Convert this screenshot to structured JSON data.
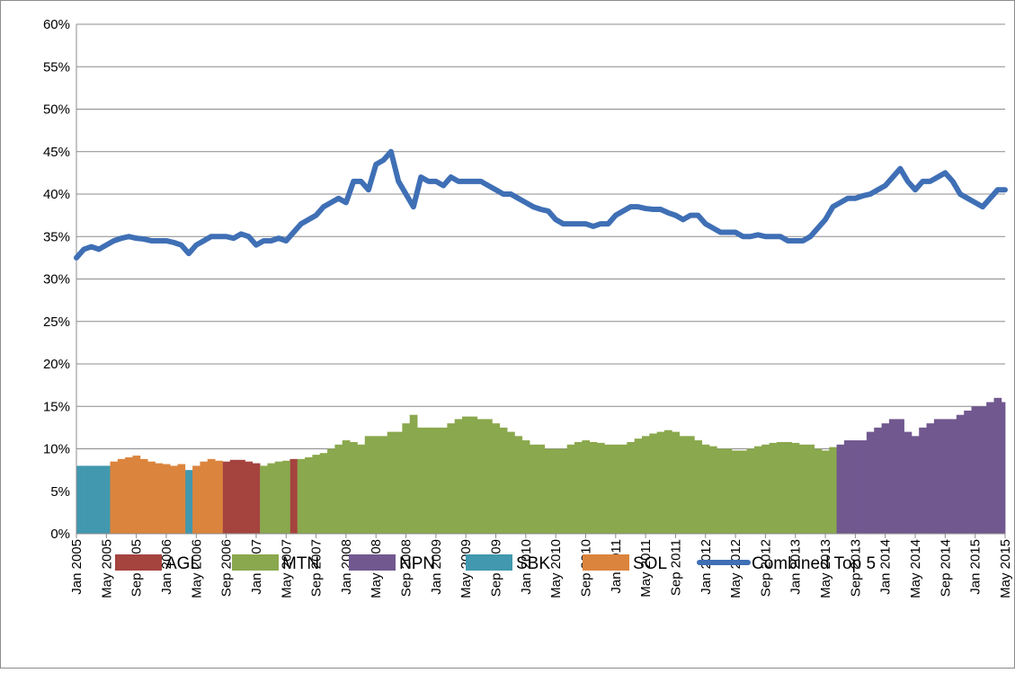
{
  "chart_data": {
    "type": "area",
    "categories": [
      "Jan 2005",
      null,
      null,
      null,
      "May 2005",
      null,
      null,
      null,
      "Sep 2005",
      null,
      null,
      null,
      "Jan 2006",
      null,
      null,
      null,
      "May 2006",
      null,
      null,
      null,
      "Sep 2006",
      null,
      null,
      null,
      "Jan 2007",
      null,
      null,
      null,
      "May 2007",
      null,
      null,
      null,
      "Sep 2007",
      null,
      null,
      null,
      "Jan 2008",
      null,
      null,
      null,
      "May 2008",
      null,
      null,
      null,
      "Sep 2008",
      null,
      null,
      null,
      "Jan 2009",
      null,
      null,
      null,
      "May 2009",
      null,
      null,
      null,
      "Sep 2009",
      null,
      null,
      null,
      "Jan 2010",
      null,
      null,
      null,
      "May 2010",
      null,
      null,
      null,
      "Sep 2010",
      null,
      null,
      null,
      "Jan 2011",
      null,
      null,
      null,
      "May 2011",
      null,
      null,
      null,
      "Sep 2011",
      null,
      null,
      null,
      "Jan 2012",
      null,
      null,
      null,
      "May 2012",
      null,
      null,
      null,
      "Sep 2012",
      null,
      null,
      null,
      "Jan 2013",
      null,
      null,
      null,
      "May 2013",
      null,
      null,
      null,
      "Sep 2013",
      null,
      null,
      null,
      "Jan 2014",
      null,
      null,
      null,
      "May 2014",
      null,
      null,
      null,
      "Sep 2014",
      null,
      null,
      null,
      "Jan 2015",
      null,
      null,
      null,
      "May 2015"
    ],
    "series": [
      {
        "name": "AGL",
        "mark": "area",
        "color": "#a5433f",
        "values": [
          null,
          null,
          null,
          null,
          null,
          null,
          null,
          null,
          null,
          null,
          null,
          null,
          null,
          null,
          null,
          null,
          null,
          null,
          null,
          null,
          8.5,
          8.7,
          8.7,
          8.5,
          8.3,
          null,
          null,
          null,
          null,
          8.8,
          null,
          null,
          null,
          null,
          null,
          null,
          null,
          null,
          null,
          null,
          null,
          null,
          null,
          null,
          null,
          null,
          null,
          null,
          null,
          null,
          null,
          null,
          null,
          null,
          null,
          null,
          null,
          null,
          null,
          null,
          null,
          null,
          null,
          null,
          null,
          null,
          null,
          null,
          null,
          null,
          null,
          null,
          null,
          null,
          null,
          null,
          null,
          null,
          null,
          null,
          null,
          null,
          null,
          null,
          null,
          null,
          null,
          null,
          null,
          null,
          null,
          null,
          null,
          null,
          null,
          null,
          null,
          null,
          null,
          null,
          null,
          null,
          null,
          null,
          null,
          null,
          null,
          null,
          null,
          null,
          null,
          null,
          null,
          null,
          null,
          null,
          null,
          null,
          null,
          null,
          null,
          null,
          null,
          null,
          null
        ]
      },
      {
        "name": "MTN",
        "mark": "area",
        "color": "#8aa84d",
        "values": [
          null,
          null,
          null,
          null,
          null,
          null,
          null,
          null,
          null,
          null,
          null,
          null,
          null,
          null,
          null,
          null,
          null,
          null,
          null,
          null,
          null,
          null,
          null,
          null,
          null,
          8,
          8.3,
          8.5,
          8.6,
          null,
          8.8,
          9,
          9.3,
          9.5,
          10,
          10.5,
          11,
          10.8,
          10.5,
          11.5,
          11.5,
          11.5,
          12,
          12,
          13,
          14,
          12.5,
          12.5,
          12.5,
          12.5,
          13,
          13.5,
          13.8,
          13.8,
          13.5,
          13.5,
          13,
          12.5,
          12,
          11.5,
          11,
          10.5,
          10.5,
          10,
          10,
          10,
          10.5,
          10.8,
          11,
          10.8,
          10.7,
          10.5,
          10.5,
          10.5,
          10.8,
          11.2,
          11.5,
          11.8,
          12,
          12.2,
          12,
          11.5,
          11.5,
          11,
          10.5,
          10.3,
          10,
          10,
          9.8,
          9.8,
          10,
          10.3,
          10.5,
          10.7,
          10.8,
          10.8,
          10.7,
          10.5,
          10.5,
          10,
          9.8,
          10.2,
          null,
          null,
          null,
          null,
          null,
          null,
          null,
          null,
          null,
          null,
          null,
          null,
          null,
          null,
          null,
          null,
          null,
          null,
          null,
          null,
          null,
          null,
          null
        ]
      },
      {
        "name": "NPN",
        "mark": "area",
        "color": "#71588f",
        "values": [
          null,
          null,
          null,
          null,
          null,
          null,
          null,
          null,
          null,
          null,
          null,
          null,
          null,
          null,
          null,
          null,
          null,
          null,
          null,
          null,
          null,
          null,
          null,
          null,
          null,
          null,
          null,
          null,
          null,
          null,
          null,
          null,
          null,
          null,
          null,
          null,
          null,
          null,
          null,
          null,
          null,
          null,
          null,
          null,
          null,
          null,
          null,
          null,
          null,
          null,
          null,
          null,
          null,
          null,
          null,
          null,
          null,
          null,
          null,
          null,
          null,
          null,
          null,
          null,
          null,
          null,
          null,
          null,
          null,
          null,
          null,
          null,
          null,
          null,
          null,
          null,
          null,
          null,
          null,
          null,
          null,
          null,
          null,
          null,
          null,
          null,
          null,
          null,
          null,
          null,
          null,
          null,
          null,
          null,
          null,
          null,
          null,
          null,
          null,
          null,
          null,
          null,
          10.5,
          11,
          11,
          11,
          12,
          12.5,
          13,
          13.5,
          13.5,
          12,
          11.5,
          12.5,
          13,
          13.5,
          13.5,
          13.5,
          14,
          14.5,
          15,
          15,
          15.5,
          16,
          15.5
        ]
      },
      {
        "name": "SBK",
        "mark": "area",
        "color": "#4198af",
        "values": [
          8,
          8,
          8,
          8,
          8,
          null,
          null,
          null,
          null,
          null,
          null,
          null,
          null,
          null,
          null,
          7.5,
          null,
          null,
          null,
          null,
          null,
          null,
          null,
          null,
          null,
          null,
          null,
          null,
          null,
          null,
          null,
          null,
          null,
          null,
          null,
          null,
          null,
          null,
          null,
          null,
          null,
          null,
          null,
          null,
          null,
          null,
          null,
          null,
          null,
          null,
          null,
          null,
          null,
          null,
          null,
          null,
          null,
          null,
          null,
          null,
          null,
          null,
          null,
          null,
          null,
          null,
          null,
          null,
          null,
          null,
          null,
          null,
          null,
          null,
          null,
          null,
          null,
          null,
          null,
          null,
          null,
          null,
          null,
          null,
          null,
          null,
          null,
          null,
          null,
          null,
          null,
          null,
          null,
          null,
          null,
          null,
          null,
          null,
          null,
          null,
          null,
          null,
          null,
          null,
          null,
          null,
          null,
          null,
          null,
          null,
          null,
          null,
          null,
          null,
          null,
          null,
          null,
          null,
          null,
          null,
          null,
          null,
          null,
          null,
          null
        ]
      },
      {
        "name": "SOL",
        "mark": "area",
        "color": "#db843d",
        "values": [
          null,
          null,
          null,
          null,
          null,
          8.5,
          8.8,
          9,
          9.2,
          8.8,
          8.5,
          8.3,
          8.2,
          8,
          8.2,
          null,
          8,
          8.5,
          8.8,
          8.6,
          null,
          null,
          null,
          null,
          null,
          null,
          null,
          null,
          null,
          null,
          null,
          null,
          null,
          null,
          null,
          null,
          null,
          null,
          null,
          null,
          null,
          null,
          null,
          null,
          null,
          null,
          null,
          null,
          null,
          null,
          null,
          null,
          null,
          null,
          null,
          null,
          null,
          null,
          null,
          null,
          null,
          null,
          null,
          null,
          null,
          null,
          null,
          null,
          null,
          null,
          null,
          null,
          null,
          null,
          null,
          null,
          null,
          null,
          null,
          null,
          null,
          null,
          null,
          null,
          null,
          null,
          null,
          null,
          null,
          null,
          null,
          null,
          null,
          null,
          null,
          null,
          null,
          null,
          null,
          null,
          null,
          null,
          null,
          null,
          null,
          null,
          null,
          null,
          null,
          null,
          null,
          null,
          null,
          null,
          null,
          null,
          null,
          null,
          null,
          null,
          null,
          null,
          null,
          null,
          null
        ]
      },
      {
        "name": "Combined Top 5",
        "mark": "line",
        "color": "#3f6fb5",
        "values": [
          32.5,
          33.5,
          33.8,
          33.5,
          34,
          34.5,
          34.8,
          35,
          34.8,
          34.7,
          34.5,
          34.5,
          34.5,
          34.3,
          34,
          33,
          34,
          34.5,
          35,
          35,
          35,
          34.8,
          35.3,
          35,
          34,
          34.5,
          34.5,
          34.8,
          34.5,
          35.5,
          36.5,
          37,
          37.5,
          38.5,
          39,
          39.5,
          39,
          41.5,
          41.5,
          40.5,
          43.5,
          44,
          45,
          41.5,
          40,
          38.5,
          42,
          41.5,
          41.5,
          41,
          42,
          41.5,
          41.5,
          41.5,
          41.5,
          41,
          40.5,
          40,
          40,
          39.5,
          39,
          38.5,
          38.2,
          38,
          37,
          36.5,
          36.5,
          36.5,
          36.5,
          36.2,
          36.5,
          36.5,
          37.5,
          38,
          38.5,
          38.5,
          38.3,
          38.2,
          38.2,
          37.8,
          37.5,
          37,
          37.5,
          37.5,
          36.5,
          36,
          35.5,
          35.5,
          35.5,
          35,
          35,
          35.2,
          35,
          35,
          35,
          34.5,
          34.5,
          34.5,
          35,
          36,
          37,
          38.5,
          39,
          39.5,
          39.5,
          39.8,
          40,
          40.5,
          41,
          42,
          43,
          41.5,
          40.5,
          41.5,
          41.5,
          42,
          42.5,
          41.5,
          40,
          39.5,
          39,
          38.5,
          39.5,
          40.5,
          40.5
        ]
      }
    ],
    "ylim": [
      0,
      60
    ],
    "yticks": [
      {
        "value": 0,
        "label": "0%"
      },
      {
        "value": 5,
        "label": "5%"
      },
      {
        "value": 10,
        "label": "10%"
      },
      {
        "value": 15,
        "label": "15%"
      },
      {
        "value": 20,
        "label": "20%"
      },
      {
        "value": 25,
        "label": "25%"
      },
      {
        "value": 30,
        "label": "30%"
      },
      {
        "value": 35,
        "label": "35%"
      },
      {
        "value": 40,
        "label": "40%"
      },
      {
        "value": 45,
        "label": "45%"
      },
      {
        "value": 50,
        "label": "50%"
      },
      {
        "value": 55,
        "label": "55%"
      },
      {
        "value": 60,
        "label": "60%"
      }
    ],
    "grid": true,
    "legend": "bottom"
  }
}
